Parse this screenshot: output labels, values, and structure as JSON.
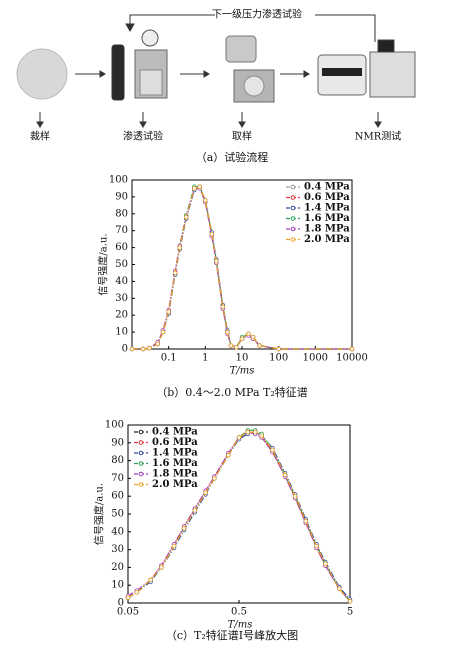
{
  "diagram": {
    "loop_label": "下一级压力渗透试验",
    "steps": [
      "裁样",
      "渗透试验",
      "取样",
      "NMR测试"
    ],
    "caption": "（a）试验流程"
  },
  "chart_data": [
    {
      "type": "line",
      "xscale": "log",
      "legend": "upper right",
      "box": true,
      "xlabel": "T/ms",
      "ylabel": "信号强度/a.u.",
      "caption": "（b）0.4～2.0 MPa T₂特征谱",
      "x": [
        0.01,
        0.02,
        0.03,
        0.05,
        0.07,
        0.1,
        0.15,
        0.2,
        0.3,
        0.5,
        0.7,
        1,
        1.5,
        2,
        3,
        4,
        5,
        7,
        10,
        15,
        20,
        30,
        100,
        10000
      ],
      "xlim": [
        0.01,
        10000
      ],
      "xticks": [
        0.1,
        1,
        10,
        100,
        1000,
        10000
      ],
      "ylim": [
        0,
        100
      ],
      "yticks": [
        0,
        10,
        20,
        30,
        40,
        50,
        60,
        70,
        80,
        90,
        100
      ],
      "series": [
        {
          "name": "0.4 MPa",
          "color": "#9a9a9a",
          "values": [
            0,
            0,
            0.5,
            3,
            10,
            22,
            45,
            60,
            78,
            95,
            96,
            88,
            68,
            52,
            25,
            10,
            2,
            1,
            6,
            9,
            7,
            2,
            0,
            0
          ]
        },
        {
          "name": "0.6 MPa",
          "color": "#e0303a",
          "values": [
            0,
            0,
            0.5,
            3,
            11,
            23,
            46,
            61,
            79,
            95,
            96,
            87,
            67,
            51,
            24,
            10,
            2,
            1,
            6,
            9,
            7,
            2,
            0,
            0
          ]
        },
        {
          "name": "1.4 MPa",
          "color": "#2f4fa0",
          "values": [
            0,
            0,
            0.4,
            3,
            10,
            21,
            44,
            59,
            77,
            94,
            96,
            88,
            69,
            53,
            26,
            11,
            2,
            1,
            6,
            9,
            7,
            2,
            0,
            0
          ]
        },
        {
          "name": "1.6 MPa",
          "color": "#2aa050",
          "values": [
            0,
            0,
            0.5,
            3,
            10,
            22,
            45,
            61,
            79,
            96,
            96,
            88,
            68,
            52,
            25,
            10,
            2,
            1,
            7,
            9,
            7,
            2,
            0,
            0
          ]
        },
        {
          "name": "1.8 MPa",
          "color": "#a040c0",
          "values": [
            0,
            0,
            0.6,
            4,
            11,
            23,
            46,
            61,
            78,
            95,
            95,
            87,
            67,
            51,
            24,
            9,
            2,
            1,
            6,
            8,
            6,
            2,
            0,
            0
          ]
        },
        {
          "name": "2.0 MPa",
          "color": "#f0a020",
          "values": [
            0,
            0,
            0.5,
            3,
            10,
            22,
            45,
            60,
            78,
            95,
            96,
            88,
            68,
            52,
            25,
            10,
            2,
            1,
            6,
            9,
            7,
            2,
            0,
            0
          ]
        }
      ]
    },
    {
      "type": "line",
      "xscale": "log",
      "legend": "upper left",
      "box": true,
      "xlabel": "T/ms",
      "ylabel": "信号强度/a.u.",
      "caption": "（c）T₂特征谱Ⅰ号峰放大图",
      "x": [
        0.05,
        0.06,
        0.08,
        0.1,
        0.13,
        0.16,
        0.2,
        0.25,
        0.3,
        0.4,
        0.5,
        0.6,
        0.7,
        0.8,
        1,
        1.3,
        1.6,
        2,
        2.5,
        3,
        4,
        5
      ],
      "xlim": [
        0.05,
        5
      ],
      "xticks": [
        0.05,
        0.5,
        5
      ],
      "ylim": [
        0,
        100
      ],
      "yticks": [
        0,
        10,
        20,
        30,
        40,
        50,
        60,
        70,
        80,
        90,
        100
      ],
      "series": [
        {
          "name": "0.4 MPa",
          "color": "#222222",
          "values": [
            3,
            6,
            13,
            20,
            32,
            42,
            52,
            62,
            70,
            83,
            93,
            96,
            96,
            94,
            86,
            72,
            60,
            46,
            32,
            22,
            8,
            1
          ]
        },
        {
          "name": "0.6 MPa",
          "color": "#e0303a",
          "values": [
            3,
            6,
            13,
            21,
            33,
            43,
            53,
            63,
            71,
            84,
            93,
            96,
            96,
            93,
            85,
            71,
            59,
            45,
            31,
            21,
            8,
            1
          ]
        },
        {
          "name": "1.4 MPa",
          "color": "#2f4fa0",
          "values": [
            3,
            6,
            12,
            20,
            31,
            41,
            51,
            61,
            70,
            83,
            92,
            95,
            96,
            94,
            87,
            73,
            61,
            47,
            33,
            23,
            9,
            2
          ]
        },
        {
          "name": "1.6 MPa",
          "color": "#2aa050",
          "values": [
            3,
            6,
            13,
            20,
            32,
            42,
            52,
            62,
            70,
            83,
            93,
            97,
            97,
            95,
            86,
            72,
            60,
            46,
            32,
            22,
            8,
            1
          ]
        },
        {
          "name": "1.8 MPa",
          "color": "#a040c0",
          "values": [
            4,
            7,
            13,
            21,
            33,
            43,
            53,
            63,
            71,
            84,
            93,
            96,
            95,
            93,
            85,
            71,
            59,
            45,
            31,
            21,
            8,
            1
          ]
        },
        {
          "name": "2.0 MPa",
          "color": "#f0a020",
          "values": [
            3,
            6,
            13,
            20,
            32,
            42,
            52,
            62,
            70,
            83,
            93,
            96,
            96,
            94,
            86,
            72,
            60,
            46,
            32,
            22,
            8,
            1
          ]
        }
      ]
    }
  ]
}
